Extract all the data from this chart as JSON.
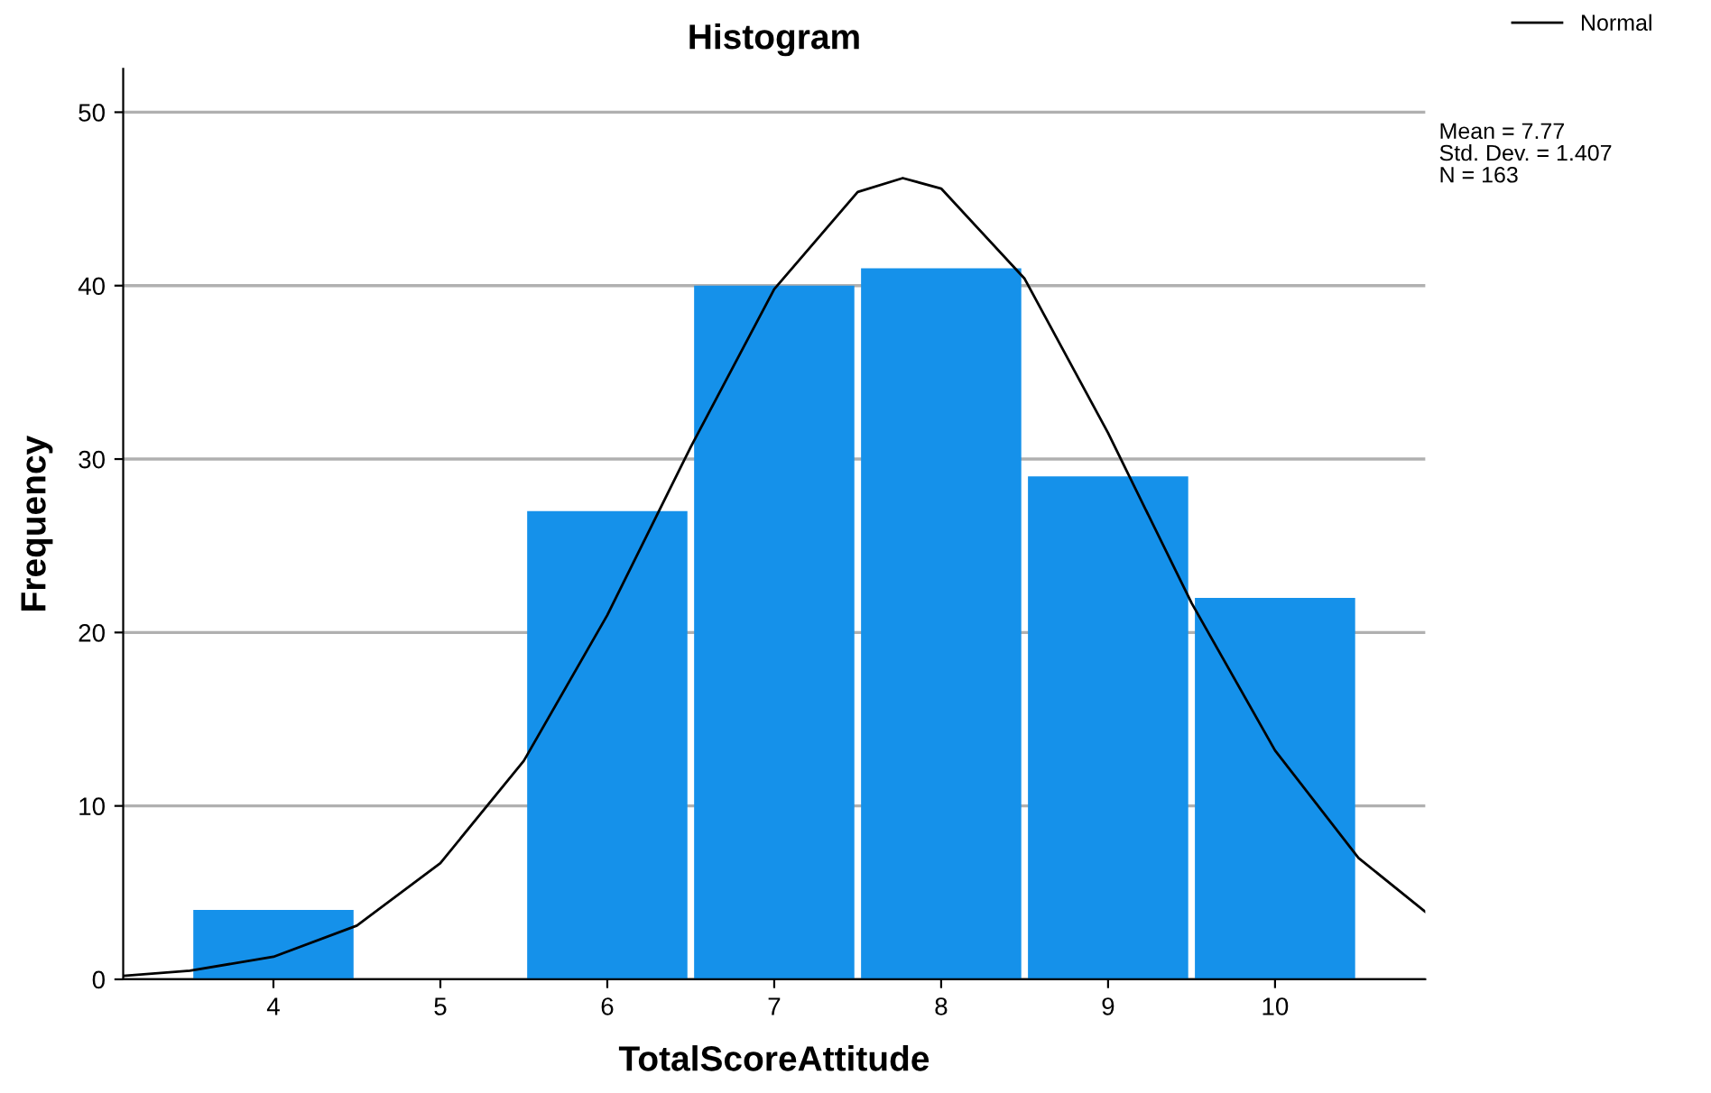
{
  "chart_data": {
    "type": "histogram",
    "title": "Histogram",
    "xlabel": "TotalScoreAttitude",
    "ylabel": "Frequency",
    "bins": [
      3.5,
      4.5,
      5.5,
      6.5,
      7.5,
      8.5,
      9.5,
      10.5
    ],
    "values": [
      4,
      0,
      27,
      40,
      41,
      29,
      22
    ],
    "color": "#1591ea",
    "series": [
      {
        "name": "Normal",
        "type": "line",
        "color": "#000000",
        "x": [
          3.1,
          3.5,
          4.0,
          4.5,
          5.0,
          5.5,
          6.0,
          6.5,
          7.0,
          7.5,
          7.77,
          8.0,
          8.5,
          9.0,
          9.5,
          10.0,
          10.5,
          10.9
        ],
        "values": [
          0.2,
          0.5,
          1.3,
          3.1,
          6.7,
          12.6,
          21.0,
          30.7,
          39.8,
          45.4,
          46.2,
          45.6,
          40.4,
          31.5,
          21.7,
          13.2,
          7.0,
          3.9
        ]
      }
    ],
    "xlim": [
      3.1,
      10.9
    ],
    "xticks": [
      4,
      5,
      6,
      7,
      8,
      9,
      10
    ],
    "ylim": [
      0,
      52.5
    ],
    "yticks": [
      0,
      10,
      20,
      30,
      40,
      50
    ],
    "grid": "y",
    "legend": "top right",
    "annotations": [
      "Mean = 7.77",
      "Std. Dev. = 1.407",
      "N = 163"
    ]
  }
}
